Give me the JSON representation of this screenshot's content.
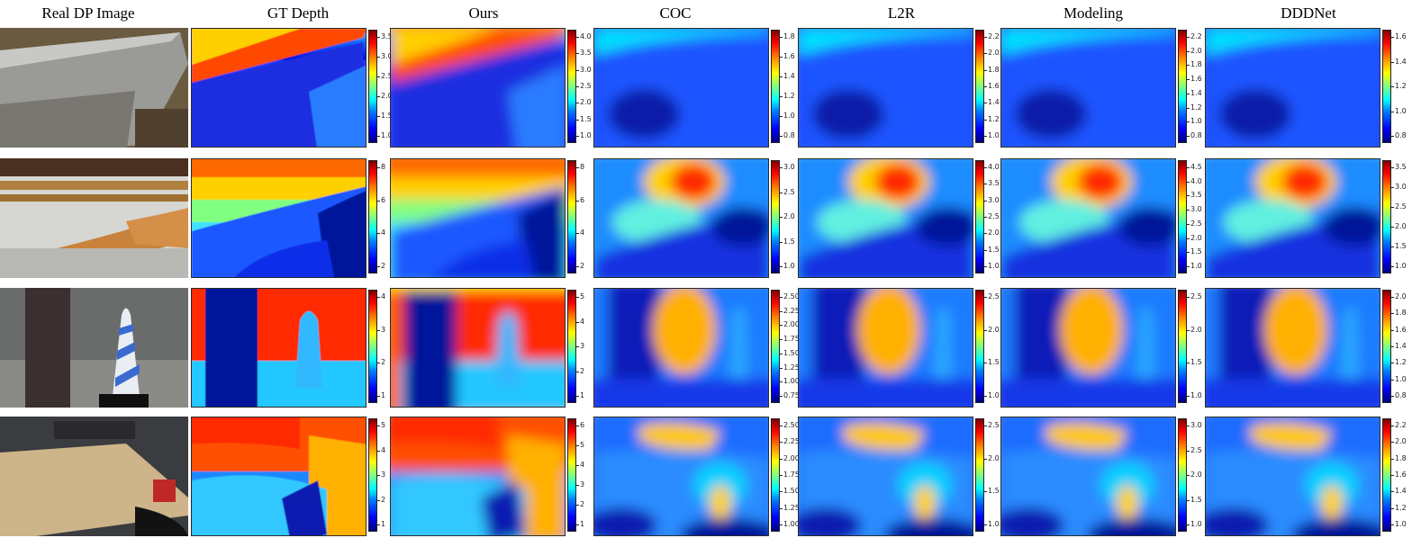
{
  "columns": [
    "Real DP Image",
    "GT Depth",
    "Ours",
    "COC",
    "L2R",
    "Modeling",
    "DDDNet"
  ],
  "rows": [
    {
      "scene": "stone-bench",
      "colorbars": [
        [
          "1.0",
          "1.5",
          "2.0",
          "2.5",
          "3.0",
          "3.5"
        ],
        [
          "1.0",
          "1.5",
          "2.0",
          "2.5",
          "3.0",
          "3.5",
          "4.0"
        ],
        [
          "0.8",
          "1.0",
          "1.2",
          "1.4",
          "1.6",
          "1.8"
        ],
        [
          "1.0",
          "1.2",
          "1.4",
          "1.6",
          "1.8",
          "2.0",
          "2.2"
        ],
        [
          "0.8",
          "1.0",
          "1.2",
          "1.4",
          "1.6",
          "1.8",
          "2.0",
          "2.2"
        ],
        [
          "0.8",
          "1.0",
          "1.2",
          "1.4",
          "1.6"
        ]
      ]
    },
    {
      "scene": "wooden-bench",
      "colorbars": [
        [
          "2",
          "4",
          "6",
          "8"
        ],
        [
          "2",
          "4",
          "6",
          "8"
        ],
        [
          "1.0",
          "1.5",
          "2.0",
          "2.5",
          "3.0"
        ],
        [
          "1.0",
          "1.5",
          "2.0",
          "2.5",
          "3.0",
          "3.5",
          "4.0"
        ],
        [
          "1.0",
          "1.5",
          "2.0",
          "2.5",
          "3.0",
          "3.5",
          "4.0",
          "4.5"
        ],
        [
          "1.0",
          "1.5",
          "2.0",
          "2.5",
          "3.0",
          "3.5"
        ]
      ]
    },
    {
      "scene": "pillar-cone",
      "colorbars": [
        [
          "1",
          "2",
          "3",
          "4"
        ],
        [
          "1",
          "2",
          "3",
          "4",
          "5"
        ],
        [
          "0.75",
          "1.00",
          "1.25",
          "1.50",
          "1.75",
          "2.00",
          "2.25",
          "2.50"
        ],
        [
          "1.0",
          "1.5",
          "2.0",
          "2.5"
        ],
        [
          "1.0",
          "1.5",
          "2.0",
          "2.5"
        ],
        [
          "0.8",
          "1.0",
          "1.2",
          "1.4",
          "1.6",
          "1.8",
          "2.0"
        ]
      ]
    },
    {
      "scene": "office-table",
      "colorbars": [
        [
          "1",
          "2",
          "3",
          "4",
          "5"
        ],
        [
          "1",
          "2",
          "3",
          "4",
          "5",
          "6"
        ],
        [
          "1.00",
          "1.25",
          "1.50",
          "1.75",
          "2.00",
          "2.25",
          "2.50"
        ],
        [
          "1.0",
          "1.5",
          "2.0",
          "2.5"
        ],
        [
          "1.0",
          "1.5",
          "2.0",
          "2.5",
          "3.0"
        ],
        [
          "1.0",
          "1.2",
          "1.4",
          "1.6",
          "1.8",
          "2.0",
          "2.2"
        ]
      ]
    }
  ]
}
